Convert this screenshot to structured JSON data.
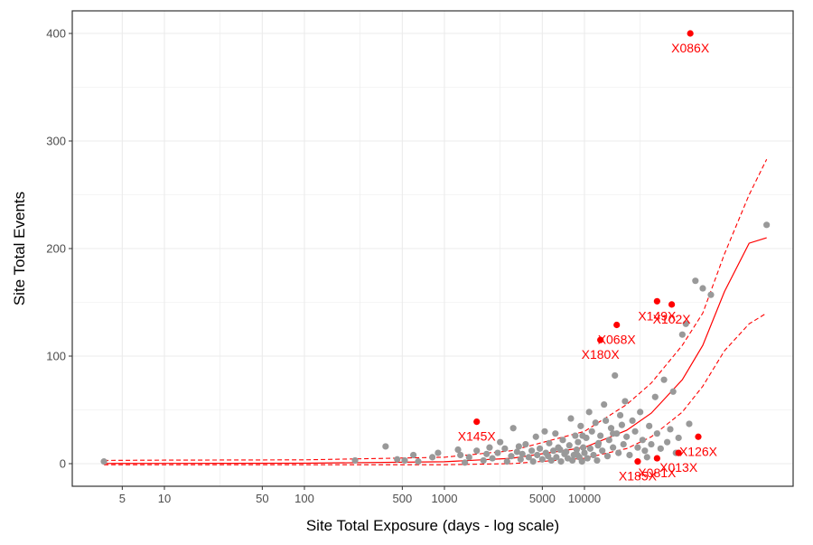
{
  "chart_data": {
    "type": "scatter",
    "title": "",
    "xlabel": "Site Total Exposure (days - log scale)",
    "ylabel": "Site Total Events",
    "x_scale": "log",
    "xlim": [
      2.5,
      230000
    ],
    "ylim": [
      -20,
      420
    ],
    "x_ticks": [
      {
        "value": 5,
        "label": "5"
      },
      {
        "value": 10,
        "label": "10"
      },
      {
        "value": 50,
        "label": "50"
      },
      {
        "value": 100,
        "label": "100"
      },
      {
        "value": 500,
        "label": "500"
      },
      {
        "value": 1000,
        "label": "1000"
      },
      {
        "value": 5000,
        "label": "5000"
      },
      {
        "value": 10000,
        "label": "10000"
      }
    ],
    "y_ticks": [
      0,
      100,
      200,
      300,
      400
    ],
    "grid": true,
    "colors": {
      "sites": "#999999",
      "outliers": "#ff0000",
      "fit": "#ff0000",
      "grid": "#ebebeb"
    },
    "sites": [
      [
        3.7,
        2
      ],
      [
        230,
        3
      ],
      [
        380,
        16
      ],
      [
        460,
        4
      ],
      [
        520,
        3
      ],
      [
        600,
        8
      ],
      [
        650,
        2
      ],
      [
        820,
        6
      ],
      [
        900,
        10
      ],
      [
        1250,
        13
      ],
      [
        1300,
        8
      ],
      [
        1400,
        1
      ],
      [
        1500,
        6
      ],
      [
        1700,
        12
      ],
      [
        1900,
        3
      ],
      [
        2000,
        9
      ],
      [
        2100,
        15
      ],
      [
        2200,
        5
      ],
      [
        2500,
        20
      ],
      [
        2700,
        14
      ],
      [
        2800,
        2
      ],
      [
        3000,
        7
      ],
      [
        3100,
        33
      ],
      [
        3300,
        11
      ],
      [
        3400,
        16
      ],
      [
        3500,
        4
      ],
      [
        3600,
        9
      ],
      [
        3800,
        18
      ],
      [
        4000,
        6
      ],
      [
        4200,
        12
      ],
      [
        4300,
        2
      ],
      [
        4500,
        25
      ],
      [
        4600,
        8
      ],
      [
        4800,
        14
      ],
      [
        5000,
        4
      ],
      [
        5200,
        30
      ],
      [
        5300,
        10
      ],
      [
        5500,
        7
      ],
      [
        5600,
        19
      ],
      [
        5800,
        3
      ],
      [
        6000,
        12
      ],
      [
        6200,
        28
      ],
      [
        6300,
        6
      ],
      [
        6500,
        15
      ],
      [
        6800,
        2
      ],
      [
        7000,
        22
      ],
      [
        7200,
        9
      ],
      [
        7400,
        11
      ],
      [
        7600,
        5
      ],
      [
        7800,
        17
      ],
      [
        8000,
        42
      ],
      [
        8200,
        3
      ],
      [
        8400,
        8
      ],
      [
        8600,
        26
      ],
      [
        8800,
        13
      ],
      [
        9000,
        20
      ],
      [
        9200,
        6
      ],
      [
        9400,
        35
      ],
      [
        9600,
        2
      ],
      [
        9800,
        15
      ],
      [
        10000,
        10
      ],
      [
        10300,
        24
      ],
      [
        10500,
        5
      ],
      [
        10800,
        48
      ],
      [
        11000,
        14
      ],
      [
        11300,
        30
      ],
      [
        11600,
        8
      ],
      [
        12000,
        38
      ],
      [
        12300,
        3
      ],
      [
        12600,
        19
      ],
      [
        13000,
        26
      ],
      [
        13400,
        12
      ],
      [
        13800,
        55
      ],
      [
        14200,
        40
      ],
      [
        14600,
        7
      ],
      [
        15000,
        22
      ],
      [
        15500,
        33
      ],
      [
        16000,
        15
      ],
      [
        16500,
        82
      ],
      [
        17000,
        28
      ],
      [
        17500,
        10
      ],
      [
        18000,
        45
      ],
      [
        18500,
        36
      ],
      [
        19000,
        18
      ],
      [
        19500,
        58
      ],
      [
        20000,
        25
      ],
      [
        21000,
        8
      ],
      [
        22000,
        40
      ],
      [
        23000,
        30
      ],
      [
        24000,
        15
      ],
      [
        25000,
        48
      ],
      [
        26000,
        22
      ],
      [
        27000,
        12
      ],
      [
        28000,
        6
      ],
      [
        29000,
        35
      ],
      [
        30000,
        18
      ],
      [
        32000,
        62
      ],
      [
        33000,
        28
      ],
      [
        35000,
        14
      ],
      [
        37000,
        78
      ],
      [
        39000,
        20
      ],
      [
        41000,
        32
      ],
      [
        43000,
        67
      ],
      [
        45000,
        10
      ],
      [
        47000,
        24
      ],
      [
        50000,
        120
      ],
      [
        53000,
        130
      ],
      [
        56000,
        37
      ],
      [
        62000,
        170
      ],
      [
        70000,
        163
      ],
      [
        80000,
        157
      ],
      [
        200000,
        222
      ],
      [
        16000,
        28
      ],
      [
        12500,
        17
      ],
      [
        9700,
        26
      ],
      [
        8900,
        8
      ],
      [
        6700,
        13
      ],
      [
        2400,
        10
      ]
    ],
    "outliers": [
      {
        "label": "X086X",
        "x": 57000,
        "y": 400
      },
      {
        "label": "X149X",
        "x": 33000,
        "y": 151
      },
      {
        "label": "X102X",
        "x": 42000,
        "y": 148
      },
      {
        "label": "X068X",
        "x": 17000,
        "y": 129
      },
      {
        "label": "X180X",
        "x": 13000,
        "y": 115
      },
      {
        "label": "X145X",
        "x": 1700,
        "y": 39
      },
      {
        "label": "X126X",
        "x": 65000,
        "y": 25
      },
      {
        "label": "X081X",
        "x": 33000,
        "y": 5
      },
      {
        "label": "X013X",
        "x": 47000,
        "y": 10
      },
      {
        "label": "X185X",
        "x": 24000,
        "y": 2
      }
    ],
    "fit_line": [
      [
        3.7,
        0.2
      ],
      [
        10,
        0.25
      ],
      [
        100,
        0.4
      ],
      [
        1000,
        1.8
      ],
      [
        3000,
        5
      ],
      [
        10000,
        15
      ],
      [
        20000,
        31
      ],
      [
        30000,
        47
      ],
      [
        50000,
        78
      ],
      [
        70000,
        110
      ],
      [
        100000,
        160
      ],
      [
        150000,
        205
      ],
      [
        200000,
        210
      ]
    ],
    "upper_band": [
      [
        3.7,
        3
      ],
      [
        10,
        3.3
      ],
      [
        100,
        3.5
      ],
      [
        1000,
        6
      ],
      [
        3000,
        12
      ],
      [
        10000,
        30
      ],
      [
        20000,
        55
      ],
      [
        30000,
        75
      ],
      [
        50000,
        110
      ],
      [
        70000,
        140
      ],
      [
        100000,
        195
      ],
      [
        150000,
        250
      ],
      [
        200000,
        283
      ]
    ],
    "lower_band": [
      [
        3.7,
        -1
      ],
      [
        100,
        -1
      ],
      [
        1000,
        -1
      ],
      [
        3000,
        0
      ],
      [
        10000,
        5
      ],
      [
        20000,
        14
      ],
      [
        30000,
        25
      ],
      [
        50000,
        48
      ],
      [
        70000,
        72
      ],
      [
        100000,
        105
      ],
      [
        150000,
        130
      ],
      [
        200000,
        140
      ]
    ]
  }
}
